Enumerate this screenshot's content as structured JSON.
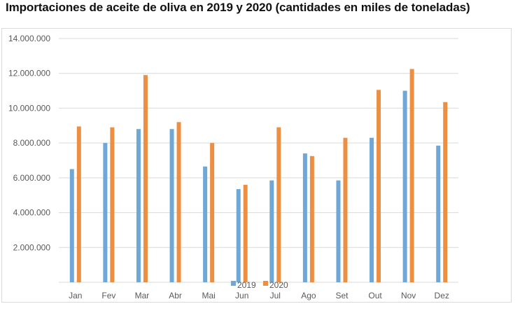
{
  "colors": {
    "series_2019": "#6fa8d6",
    "series_2020": "#ed8f43",
    "grid": "#d9d9d9",
    "text": "#595959"
  },
  "chart_data": {
    "type": "bar",
    "title": "Importaciones de aceite de oliva en 2019 y 2020 (cantidades en miles de toneladas)",
    "xlabel": "",
    "ylabel": "",
    "ylim": [
      0,
      14000000
    ],
    "yticks": [
      {
        "value": 2000000,
        "label": "2.000.000"
      },
      {
        "value": 4000000,
        "label": "4.000.000"
      },
      {
        "value": 6000000,
        "label": "6.000.000"
      },
      {
        "value": 8000000,
        "label": "8.000.000"
      },
      {
        "value": 10000000,
        "label": "10.000.000"
      },
      {
        "value": 12000000,
        "label": "12.000.000"
      },
      {
        "value": 14000000,
        "label": "14.000.000"
      }
    ],
    "grid": true,
    "legend_position": "bottom",
    "categories": [
      "Jan",
      "Fev",
      "Mar",
      "Abr",
      "Mai",
      "Jun",
      "Jul",
      "Ago",
      "Set",
      "Out",
      "Nov",
      "Dez"
    ],
    "series": [
      {
        "name": "2019",
        "values": [
          6500000,
          8000000,
          8800000,
          8800000,
          6650000,
          5350000,
          5850000,
          7400000,
          5850000,
          8300000,
          11000000,
          7850000
        ]
      },
      {
        "name": "2020",
        "values": [
          8950000,
          8900000,
          11900000,
          9200000,
          8000000,
          5600000,
          8900000,
          7250000,
          8300000,
          11050000,
          12250000,
          10350000
        ]
      }
    ]
  }
}
